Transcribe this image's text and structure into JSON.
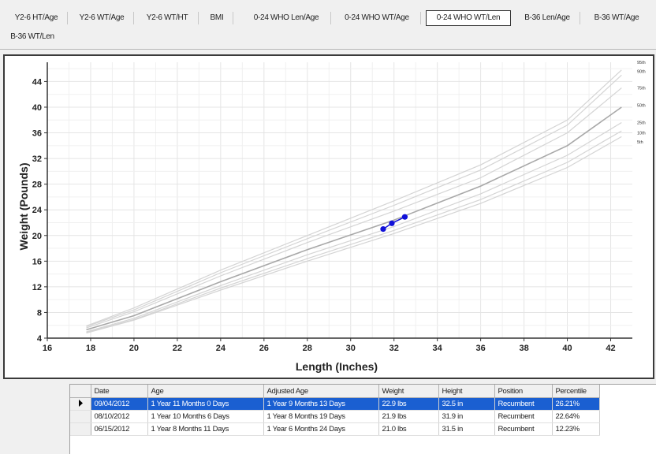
{
  "tabs": [
    {
      "label": "Y2-6 HT/Age",
      "active": false
    },
    {
      "label": "Y2-6 WT/Age",
      "active": false
    },
    {
      "label": "Y2-6 WT/HT",
      "active": false
    },
    {
      "label": "BMI",
      "active": false
    },
    {
      "label": "0-24 WHO Len/Age",
      "active": false
    },
    {
      "label": "0-24 WHO WT/Age",
      "active": false
    },
    {
      "label": "0-24 WHO WT/Len",
      "active": true
    },
    {
      "label": "B-36 Len/Age",
      "active": false
    },
    {
      "label": "B-36 WT/Age",
      "active": false
    },
    {
      "label": "B-36 WT/Len",
      "active": false
    }
  ],
  "chart_data": {
    "type": "line",
    "xlabel": "Length (Inches)",
    "ylabel": "Weight (Pounds)",
    "xlim": [
      16,
      43
    ],
    "ylim": [
      4,
      47
    ],
    "xticks": [
      16,
      18,
      20,
      22,
      24,
      26,
      28,
      30,
      32,
      34,
      36,
      38,
      40,
      42
    ],
    "yticks": [
      4,
      8,
      12,
      16,
      20,
      24,
      28,
      32,
      36,
      40,
      44
    ],
    "grid": true,
    "percentile_curves": [
      {
        "name": "95th",
        "points": [
          [
            17.8,
            5.9
          ],
          [
            20,
            8.7
          ],
          [
            24,
            14.6
          ],
          [
            28,
            20.0
          ],
          [
            32,
            25.4
          ],
          [
            36,
            31.0
          ],
          [
            40,
            38.0
          ],
          [
            42.5,
            45.8
          ]
        ]
      },
      {
        "name": "90th",
        "points": [
          [
            17.8,
            5.8
          ],
          [
            20,
            8.4
          ],
          [
            24,
            14.2
          ],
          [
            28,
            19.5
          ],
          [
            32,
            24.7
          ],
          [
            36,
            30.2
          ],
          [
            40,
            37.2
          ],
          [
            42.5,
            45.0
          ]
        ]
      },
      {
        "name": "75th",
        "points": [
          [
            17.8,
            5.6
          ],
          [
            20,
            8.1
          ],
          [
            24,
            13.7
          ],
          [
            28,
            18.9
          ],
          [
            32,
            23.8
          ],
          [
            36,
            29.0
          ],
          [
            40,
            36.0
          ],
          [
            42.5,
            43.0
          ]
        ]
      },
      {
        "name": "50th",
        "points": [
          [
            17.8,
            5.3
          ],
          [
            20,
            7.5
          ],
          [
            24,
            12.8
          ],
          [
            28,
            17.8
          ],
          [
            32,
            22.4
          ],
          [
            36,
            27.7
          ],
          [
            40,
            34.0
          ],
          [
            42.5,
            40.0
          ]
        ]
      },
      {
        "name": "25th",
        "points": [
          [
            17.8,
            5.0
          ],
          [
            20,
            7.1
          ],
          [
            24,
            12.2
          ],
          [
            28,
            17.0
          ],
          [
            32,
            21.4
          ],
          [
            36,
            26.5
          ],
          [
            40,
            32.5
          ],
          [
            42.5,
            37.6
          ]
        ]
      },
      {
        "name": "10th",
        "points": [
          [
            17.8,
            4.9
          ],
          [
            20,
            6.9
          ],
          [
            24,
            11.8
          ],
          [
            28,
            16.4
          ],
          [
            32,
            20.8
          ],
          [
            36,
            25.6
          ],
          [
            40,
            31.4
          ],
          [
            42.5,
            36.3
          ]
        ]
      },
      {
        "name": "5th",
        "points": [
          [
            17.8,
            4.8
          ],
          [
            20,
            6.8
          ],
          [
            24,
            11.5
          ],
          [
            28,
            16.0
          ],
          [
            32,
            20.3
          ],
          [
            36,
            25.0
          ],
          [
            40,
            30.6
          ],
          [
            42.5,
            35.4
          ]
        ]
      }
    ],
    "percentile_labels": [
      {
        "text": "95th",
        "y": 47.0
      },
      {
        "text": "90th",
        "y": 45.6
      },
      {
        "text": "75th",
        "y": 43.0
      },
      {
        "text": "50th",
        "y": 40.3
      },
      {
        "text": "25th",
        "y": 37.6
      },
      {
        "text": "10th",
        "y": 36.0
      },
      {
        "text": "5th",
        "y": 34.6
      }
    ],
    "series": [
      {
        "points": [
          [
            31.5,
            21.0
          ],
          [
            31.9,
            21.9
          ],
          [
            32.5,
            22.9
          ]
        ],
        "color": "#1010d8"
      }
    ]
  },
  "measurements": {
    "columns": [
      "Date",
      "Age",
      "Adjusted Age",
      "Weight",
      "Height",
      "Position",
      "Percentile"
    ],
    "rows": [
      {
        "cells": [
          "09/04/2012",
          "1 Year 11 Months 0 Days",
          "1 Year 9 Months 13 Days",
          "22.9 lbs",
          "32.5 in",
          "Recumbent",
          "26.21%"
        ],
        "selected": true
      },
      {
        "cells": [
          "08/10/2012",
          "1 Year 10 Months 6 Days",
          "1 Year 8 Months 19 Days",
          "21.9 lbs",
          "31.9 in",
          "Recumbent",
          "22.64%"
        ],
        "selected": false
      },
      {
        "cells": [
          "06/15/2012",
          "1 Year 8 Months 11 Days",
          "1 Year 6 Months 24 Days",
          "21.0 lbs",
          "31.5 in",
          "Recumbent",
          "12.23%"
        ],
        "selected": false
      }
    ]
  },
  "colors": {
    "selection": "#1a5fd1",
    "data_point": "#1010d8",
    "curve_median": "#a8a8a8",
    "curve_other": "#d4d4d4"
  }
}
